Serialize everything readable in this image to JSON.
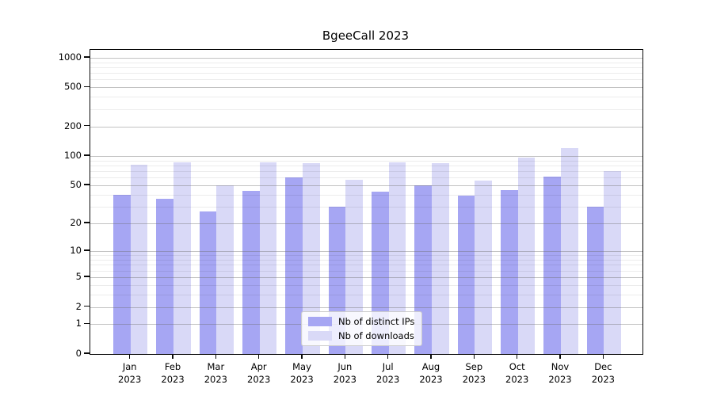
{
  "chart_data": {
    "type": "bar",
    "title": "BgeeCall 2023",
    "categories": [
      "Jan",
      "Feb",
      "Mar",
      "Apr",
      "May",
      "Jun",
      "Jul",
      "Aug",
      "Sep",
      "Oct",
      "Nov",
      "Dec"
    ],
    "category_year": "2023",
    "series": [
      {
        "key": "distinct-ips",
        "name": "Nb of distinct IPs",
        "color": "#a6a6f3",
        "values": [
          40,
          36,
          27,
          44,
          60,
          30,
          43,
          50,
          39,
          45,
          61,
          30
        ]
      },
      {
        "key": "downloads",
        "name": "Nb of downloads",
        "color": "#d9d9f7",
        "values": [
          82,
          86,
          50,
          87,
          85,
          57,
          86,
          84,
          56,
          97,
          120,
          70
        ]
      }
    ],
    "yscale": "log1p",
    "ylim": [
      0,
      1200
    ],
    "yticks": [
      1000,
      500,
      200,
      100,
      50,
      20,
      10,
      5,
      2,
      1,
      0
    ],
    "minor_gridlines": [
      3,
      4,
      6,
      7,
      8,
      9,
      30,
      40,
      60,
      70,
      80,
      90,
      300,
      400,
      600,
      700,
      800,
      900
    ],
    "grid": true,
    "legend_position": "bottom-center",
    "colors": {
      "grid_major": "#6e6e6e",
      "grid_minor": "#ebebeb",
      "spine": "#0a0a0a",
      "background": "#ffffff"
    }
  }
}
